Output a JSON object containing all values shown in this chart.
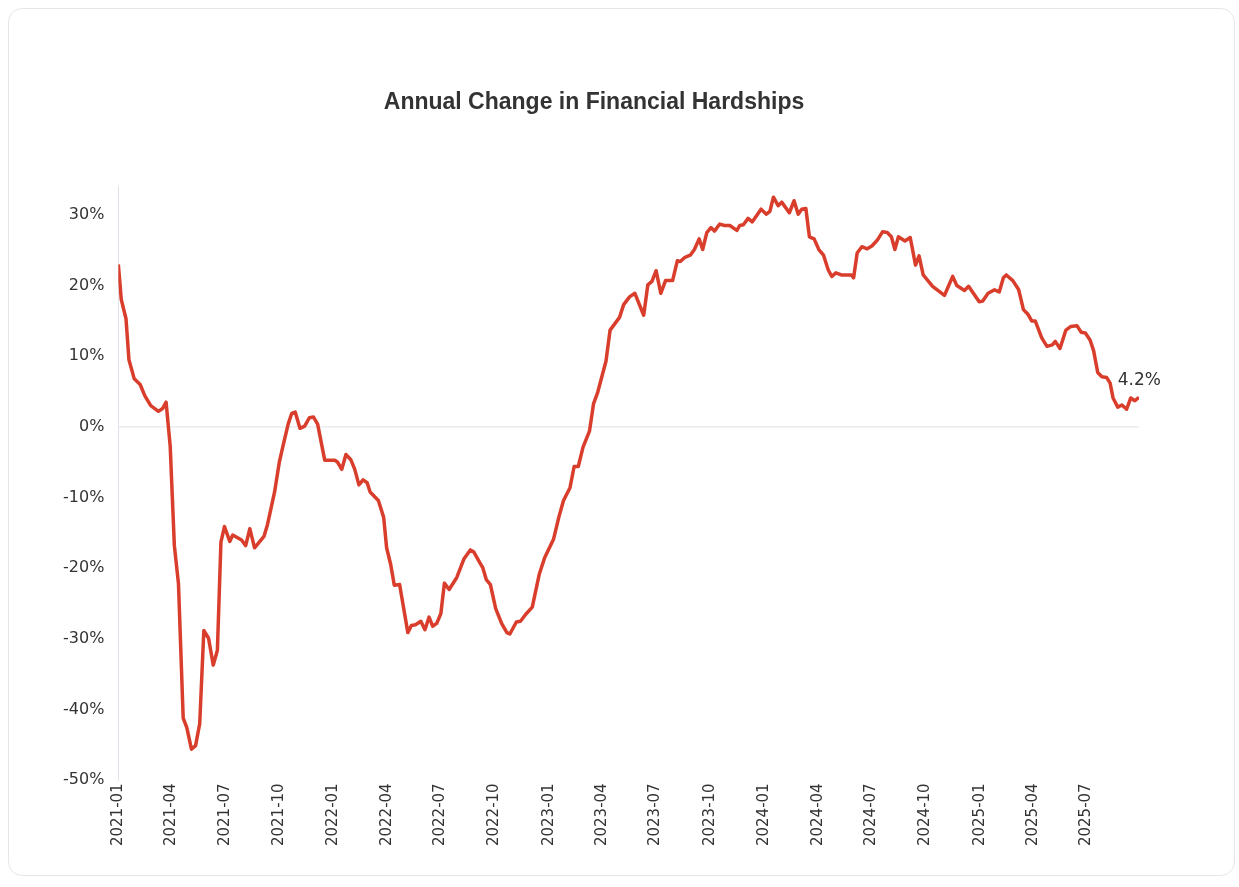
{
  "chart_data": {
    "type": "line",
    "title": "Annual Change in Financial Hardships",
    "x": [
      "2021-01-01",
      "2021-01-06",
      "2021-01-14",
      "2021-01-19",
      "2021-01-28",
      "2021-02-07",
      "2021-02-15",
      "2021-02-25",
      "2021-03-10",
      "2021-03-17",
      "2021-03-23",
      "2021-03-30",
      "2021-04-06",
      "2021-04-13",
      "2021-04-21",
      "2021-04-27",
      "2021-05-05",
      "2021-05-12",
      "2021-05-19",
      "2021-05-26",
      "2021-06-03",
      "2021-06-11",
      "2021-06-18",
      "2021-06-24",
      "2021-06-30",
      "2021-07-09",
      "2021-07-14",
      "2021-07-29",
      "2021-08-05",
      "2021-08-12",
      "2021-08-20",
      "2021-09-05",
      "2021-09-11",
      "2021-09-23",
      "2021-10-01",
      "2021-10-07",
      "2021-10-16",
      "2021-10-22",
      "2021-10-28",
      "2021-11-05",
      "2021-11-13",
      "2021-11-21",
      "2021-11-28",
      "2021-12-05",
      "2021-12-17",
      "2022-01-03",
      "2022-01-08",
      "2022-01-15",
      "2022-01-22",
      "2022-01-30",
      "2022-02-06",
      "2022-02-13",
      "2022-02-20",
      "2022-02-27",
      "2022-03-04",
      "2022-03-18",
      "2022-03-27",
      "2022-04-01",
      "2022-04-08",
      "2022-04-14",
      "2022-04-23",
      "2022-05-07",
      "2022-05-13",
      "2022-05-20",
      "2022-05-29",
      "2022-06-05",
      "2022-06-12",
      "2022-06-18",
      "2022-06-25",
      "2022-07-02",
      "2022-07-08",
      "2022-07-16",
      "2022-07-29",
      "2022-08-10",
      "2022-08-21",
      "2022-08-27",
      "2022-09-06",
      "2022-09-11",
      "2022-09-17",
      "2022-09-24",
      "2022-10-03",
      "2022-10-13",
      "2022-10-22",
      "2022-10-27",
      "2022-11-07",
      "2022-11-14",
      "2022-11-23",
      "2022-12-04",
      "2022-12-16",
      "2022-12-25",
      "2023-01-09",
      "2023-01-18",
      "2023-01-26",
      "2023-02-06",
      "2023-02-13",
      "2023-02-20",
      "2023-02-28",
      "2023-03-11",
      "2023-03-18",
      "2023-03-25",
      "2023-04-08",
      "2023-04-15",
      "2023-05-01",
      "2023-05-08",
      "2023-05-18",
      "2023-05-27",
      "2023-06-11",
      "2023-06-18",
      "2023-06-25",
      "2023-07-02",
      "2023-07-10",
      "2023-07-18",
      "2023-07-30",
      "2023-08-07",
      "2023-08-12",
      "2023-08-20",
      "2023-08-29",
      "2023-09-05",
      "2023-09-13",
      "2023-09-19",
      "2023-09-26",
      "2023-10-03",
      "2023-10-09",
      "2023-10-18",
      "2023-10-26",
      "2023-11-04",
      "2023-11-16",
      "2023-11-21",
      "2023-11-27",
      "2023-12-05",
      "2023-12-12",
      "2023-12-27",
      "2024-01-05",
      "2024-01-11",
      "2024-01-17",
      "2024-01-25",
      "2024-01-31",
      "2024-02-13",
      "2024-02-21",
      "2024-02-28",
      "2024-03-05",
      "2024-03-12",
      "2024-03-18",
      "2024-03-26",
      "2024-04-03",
      "2024-04-11",
      "2024-04-19",
      "2024-04-25",
      "2024-05-02",
      "2024-05-11",
      "2024-05-28",
      "2024-06-01",
      "2024-06-07",
      "2024-06-15",
      "2024-06-24",
      "2024-07-02",
      "2024-07-11",
      "2024-07-20",
      "2024-07-28",
      "2024-08-04",
      "2024-08-10",
      "2024-08-16",
      "2024-08-27",
      "2024-09-05",
      "2024-09-14",
      "2024-09-20",
      "2024-09-27",
      "2024-10-13",
      "2024-11-02",
      "2024-11-16",
      "2024-11-23",
      "2024-12-06",
      "2024-12-13",
      "2024-12-31",
      "2025-01-06",
      "2025-01-15",
      "2025-01-26",
      "2025-02-03",
      "2025-02-10",
      "2025-02-15",
      "2025-02-26",
      "2025-03-08",
      "2025-03-16",
      "2025-03-24",
      "2025-03-30",
      "2025-04-05",
      "2025-04-16",
      "2025-04-25",
      "2025-05-04",
      "2025-05-09",
      "2025-05-17",
      "2025-05-27",
      "2025-06-04",
      "2025-06-15",
      "2025-06-22",
      "2025-06-29",
      "2025-07-07",
      "2025-07-13",
      "2025-07-20",
      "2025-07-27",
      "2025-08-04",
      "2025-08-10",
      "2025-08-15",
      "2025-08-23",
      "2025-08-30",
      "2025-09-07",
      "2025-09-14",
      "2025-09-21",
      "2025-09-28"
    ],
    "series": [
      {
        "color": "#d93d2b",
        "values": [
          23.0,
          18.0,
          15.3,
          9.5,
          6.8,
          6.0,
          4.4,
          3.0,
          2.2,
          2.6,
          3.5,
          -2.8,
          -16.8,
          -22.2,
          -41.2,
          -42.5,
          -45.6,
          -45.1,
          -42.0,
          -28.8,
          -29.9,
          -33.7,
          -31.6,
          -16.3,
          -14.1,
          -16.2,
          -15.3,
          -16.0,
          -16.8,
          -14.4,
          -17.1,
          -15.5,
          -13.8,
          -9.2,
          -5.0,
          -2.8,
          0.4,
          1.9,
          2.1,
          -0.2,
          0.1,
          1.3,
          1.4,
          0.4,
          -4.7,
          -4.7,
          -5.0,
          -6.0,
          -3.9,
          -4.6,
          -6.0,
          -8.2,
          -7.5,
          -7.9,
          -9.2,
          -10.4,
          -12.8,
          -17.1,
          -19.5,
          -22.4,
          -22.3,
          -29.1,
          -28.1,
          -28.0,
          -27.5,
          -28.7,
          -26.9,
          -28.2,
          -27.8,
          -26.4,
          -22.1,
          -23.0,
          -21.3,
          -18.7,
          -17.4,
          -17.7,
          -19.2,
          -19.9,
          -21.6,
          -22.3,
          -25.7,
          -27.8,
          -29.1,
          -29.3,
          -27.6,
          -27.5,
          -26.5,
          -25.5,
          -20.8,
          -18.5,
          -15.9,
          -12.8,
          -10.4,
          -8.6,
          -5.6,
          -5.6,
          -2.9,
          -0.6,
          3.3,
          4.9,
          9.3,
          13.7,
          15.5,
          17.3,
          18.4,
          18.9,
          15.8,
          20.1,
          20.6,
          22.1,
          18.9,
          20.7,
          20.7,
          23.5,
          23.4,
          24.0,
          24.3,
          25.1,
          26.6,
          25.1,
          27.5,
          28.2,
          27.7,
          28.7,
          28.5,
          28.5,
          27.8,
          28.5,
          28.6,
          29.5,
          29.0,
          30.8,
          30.1,
          30.5,
          32.5,
          31.3,
          31.8,
          30.3,
          32.0,
          30.1,
          30.8,
          30.9,
          26.9,
          26.6,
          25.1,
          24.3,
          22.2,
          21.3,
          21.8,
          21.5,
          21.5,
          21.1,
          24.6,
          25.5,
          25.2,
          25.6,
          26.4,
          27.6,
          27.5,
          26.9,
          25.1,
          26.9,
          26.3,
          26.8,
          22.9,
          24.2,
          21.5,
          19.9,
          18.6,
          21.3,
          20.0,
          19.3,
          19.9,
          17.7,
          17.8,
          18.9,
          19.4,
          19.1,
          21.1,
          21.5,
          20.7,
          19.4,
          16.6,
          15.9,
          15.0,
          15.0,
          12.6,
          11.4,
          11.6,
          12.1,
          11.1,
          13.7,
          14.2,
          14.3,
          13.4,
          13.3,
          12.3,
          10.8,
          7.7,
          7.1,
          7.0,
          6.2,
          4.1,
          2.8,
          3.1,
          2.5,
          4.1,
          3.7,
          4.2
        ]
      }
    ],
    "xlim": [
      "2021-01-01",
      "2025-09-28"
    ],
    "xticks": [
      "2021-01",
      "2021-04",
      "2021-07",
      "2021-10",
      "2022-01",
      "2022-04",
      "2022-07",
      "2022-10",
      "2023-01",
      "2023-04",
      "2023-07",
      "2023-10",
      "2024-01",
      "2024-04",
      "2024-07",
      "2024-10",
      "2025-01",
      "2025-04",
      "2025-07"
    ],
    "ylim": [
      -50,
      34
    ],
    "yticks": [
      {
        "value": -50,
        "label": "-50%"
      },
      {
        "value": -40,
        "label": "-40%"
      },
      {
        "value": -30,
        "label": "-30%"
      },
      {
        "value": -20,
        "label": "-20%"
      },
      {
        "value": -10,
        "label": "-10%"
      },
      {
        "value": 0,
        "label": "0%"
      },
      {
        "value": 10,
        "label": "10%"
      },
      {
        "value": 20,
        "label": "20%"
      },
      {
        "value": 30,
        "label": "30%"
      }
    ],
    "grid": false,
    "marker": "none",
    "ref_lines": [
      {
        "axis": "y",
        "value": 0,
        "color": "#e2e2ea"
      }
    ],
    "annotations": [
      {
        "text": "4.2%",
        "x": "2025-09-28",
        "y": 4.2
      }
    ]
  }
}
